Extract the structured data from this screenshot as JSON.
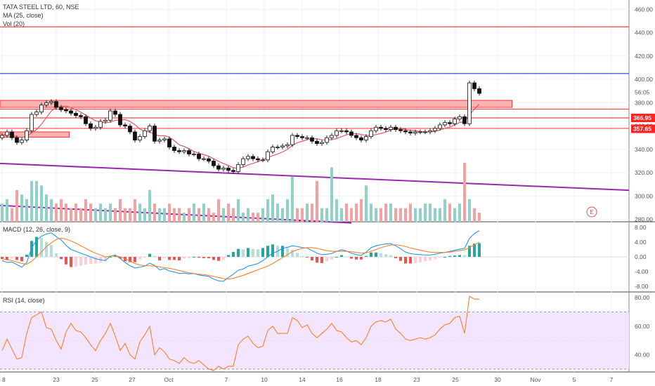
{
  "header": {
    "symbol_line": "TATA STEEL LTD, 60, NSE",
    "ma_line": "MA (25, close)",
    "vol_line": "Vol (20)"
  },
  "panes": {
    "macd_title": "MACD (12, 26, close, 9)",
    "rsi_title": "RSI (14, close)"
  },
  "earnings_marker": "E",
  "colors": {
    "up": "#26a69a",
    "down": "#000000",
    "ma": "#e0595e",
    "macd": "#2196f3",
    "signal": "#ff7f2a",
    "rsi": "#ff7f2a",
    "resistance": "#ff4444",
    "blue_line": "#3355ff",
    "trend": "#9c27b0",
    "rsi_band": "#f3e5ff"
  },
  "chart_data": [
    {
      "type": "candlestick",
      "title": "TATA STEEL LTD, 60, NSE",
      "ylim": [
        278,
        468
      ],
      "y_ticks": [
        "460.00",
        "440.00",
        "420.00",
        "400.00",
        "380.00",
        "360.00",
        "340.00",
        "320.00",
        "300.00",
        "280.00"
      ],
      "y_tick_values": [
        460,
        440,
        420,
        400,
        380,
        360,
        340,
        320,
        300,
        280
      ],
      "x_ticks": [
        "8",
        "23",
        "25",
        "27",
        "Oct",
        "7",
        "10",
        "14",
        "16",
        "18",
        "23",
        "25",
        "30",
        "Nov",
        "5",
        "7"
      ],
      "price_badges": [
        {
          "label": "366.95",
          "value": 366.95
        },
        {
          "label": "357.65",
          "value": 357.65
        }
      ],
      "last_price_label": "56:05",
      "horizontal_lines": [
        {
          "value": 445,
          "color": "#ff4444"
        },
        {
          "value": 405,
          "color": "#3355ff"
        },
        {
          "value": 374.5,
          "color": "#ff4444"
        },
        {
          "value": 367,
          "color": "#ff4444"
        },
        {
          "value": 358,
          "color": "#ff4444"
        }
      ],
      "zones": [
        {
          "from_x": 0,
          "to_x": 0.925,
          "low": 376,
          "high": 382
        },
        {
          "from_x": 0,
          "to_x": 0.125,
          "low": 350.5,
          "high": 355
        }
      ],
      "close_series": [
        352,
        355,
        350,
        346,
        348,
        356,
        370,
        372,
        378,
        380,
        381,
        376,
        374,
        373,
        371,
        369,
        368,
        362,
        358,
        359,
        364,
        365,
        373,
        370,
        361,
        360,
        355,
        348,
        351,
        356,
        360,
        347,
        348,
        349,
        342,
        339,
        338,
        339,
        336,
        336,
        332,
        332,
        330,
        326,
        323,
        324,
        322,
        321,
        327,
        332,
        334,
        332,
        331,
        331,
        338,
        342,
        342,
        343,
        344,
        352,
        351,
        350,
        350,
        347,
        345,
        346,
        350,
        352,
        356,
        356,
        355,
        352,
        350,
        348,
        351,
        356,
        359,
        358,
        357,
        359,
        357,
        356,
        355,
        354,
        355,
        355,
        355,
        356,
        358,
        361,
        363,
        362,
        366,
        368,
        362,
        397,
        392,
        388
      ]
    },
    {
      "type": "volume",
      "title": "Vol (20)",
      "values": [
        4,
        5,
        3,
        7,
        6,
        5,
        9,
        9,
        8,
        6,
        5,
        4,
        5,
        4,
        3,
        4,
        3,
        5,
        4,
        3,
        4,
        3,
        4,
        3,
        5,
        3,
        3,
        5,
        4,
        3,
        7,
        4,
        3,
        3,
        4,
        3,
        3,
        2,
        3,
        4,
        3,
        4,
        3,
        2,
        5,
        3,
        4,
        3,
        5,
        2,
        3,
        2,
        2,
        3,
        5,
        6,
        4,
        3,
        5,
        10,
        3,
        3,
        4,
        4,
        9,
        3,
        3,
        12,
        5,
        3,
        4,
        3,
        4,
        5,
        8,
        4,
        3,
        3,
        4,
        4,
        3,
        3,
        3,
        4,
        3,
        3,
        4,
        4,
        3,
        3,
        5,
        4,
        3,
        4,
        13,
        5,
        3,
        2
      ]
    },
    {
      "type": "line",
      "title": "MACD (12, 26, close, 9)",
      "ylim": [
        -8,
        8
      ],
      "y_ticks": [
        "8.00",
        "4.00",
        "0.00",
        "-4.00",
        "-8.00"
      ],
      "y_tick_values": [
        8,
        4,
        0,
        -4,
        -8
      ],
      "series": [
        {
          "name": "MACD",
          "values": [
            -1,
            -1.5,
            -1.4,
            -2.1,
            -2.8,
            -1.5,
            2.4,
            4.5,
            5.6,
            6.2,
            6.5,
            5.5,
            4.6,
            3.1,
            2,
            1.5,
            1,
            0.5,
            0,
            -0.5,
            -0.8,
            -1,
            0.2,
            0.5,
            -0.4,
            -1.5,
            -2.4,
            -3,
            -2.8,
            -2.5,
            -1.7,
            -2.3,
            -3.5,
            -3.2,
            -3.8,
            -4.1,
            -4.5,
            -4.4,
            -4.6,
            -4.5,
            -4.9,
            -5.1,
            -5.3,
            -6,
            -6.5,
            -6.6,
            -5.6,
            -4.7,
            -3.6,
            -3.3,
            -2.5,
            -2.2,
            -1.8,
            -1,
            0,
            1,
            1.5,
            2.3,
            2.6,
            3,
            2.8,
            2.5,
            2.4,
            1.7,
            1,
            0.6,
            0.7,
            0.9,
            1.5,
            1.9,
            1.6,
            1,
            0.6,
            0.4,
            1.3,
            2.5,
            3,
            3.3,
            3.5,
            3.6,
            3,
            2.2,
            1.3,
            0.9,
            0.7,
            0.6,
            0.5,
            0.5,
            0.7,
            1,
            1.2,
            1.5,
            1.8,
            2.1,
            2.3,
            5,
            6.3,
            7.1
          ]
        },
        {
          "name": "Signal",
          "values": [
            -0.5,
            -0.8,
            -1,
            -1.4,
            -1.8,
            -2,
            -1.2,
            0,
            1.3,
            2.8,
            3.8,
            4.7,
            5.1,
            4.8,
            4.3,
            3.7,
            3,
            2.3,
            1.6,
            1,
            0.5,
            0,
            0.2,
            0.3,
            0,
            -0.5,
            -1.2,
            -1.8,
            -2.2,
            -2.4,
            -2.4,
            -2.5,
            -2.7,
            -2.9,
            -3.1,
            -3.4,
            -3.7,
            -4,
            -4.3,
            -4.5,
            -4.7,
            -4.8,
            -5,
            -5.3,
            -5.6,
            -5.9,
            -6,
            -5.8,
            -5.4,
            -5,
            -4.5,
            -4,
            -3.5,
            -3,
            -2.5,
            -1.8,
            -1,
            -0.2,
            0.6,
            1.4,
            1.9,
            2.3,
            2.5,
            2.5,
            2.3,
            2,
            1.7,
            1.5,
            1.5,
            1.5,
            1.5,
            1.4,
            1.2,
            1,
            1.1,
            1.5,
            2,
            2.5,
            2.9,
            3.2,
            3.3,
            3.1,
            2.8,
            2.4,
            2.1,
            1.8,
            1.5,
            1.3,
            1.2,
            1.2,
            1.2,
            1.3,
            1.5,
            1.7,
            1.9,
            2.5,
            3.3,
            4
          ]
        }
      ]
    },
    {
      "type": "line",
      "title": "RSI (14, close)",
      "ylim": [
        28,
        84
      ],
      "y_ticks": [
        "80.00",
        "60.00",
        "40.00"
      ],
      "y_tick_values": [
        80,
        60,
        40
      ],
      "band": [
        30,
        70
      ],
      "series": [
        {
          "name": "RSI",
          "values": [
            43,
            51,
            44,
            37,
            38,
            55,
            66,
            68,
            70,
            59,
            58,
            50,
            44,
            56,
            62,
            57,
            56,
            52,
            47,
            43,
            50,
            55,
            62,
            53,
            43,
            48,
            40,
            37,
            49,
            54,
            60,
            40,
            45,
            42,
            37,
            36,
            34,
            38,
            35,
            34,
            36,
            33,
            30,
            29,
            32,
            30,
            32,
            32,
            47,
            51,
            53,
            48,
            45,
            46,
            57,
            60,
            55,
            55,
            55,
            66,
            64,
            59,
            61,
            55,
            52,
            55,
            58,
            62,
            57,
            56,
            52,
            49,
            50,
            47,
            52,
            60,
            63,
            64,
            63,
            65,
            58,
            55,
            51,
            50,
            51,
            52,
            51,
            52,
            54,
            58,
            61,
            62,
            66,
            67,
            55,
            81,
            79,
            79
          ]
        }
      ]
    }
  ]
}
